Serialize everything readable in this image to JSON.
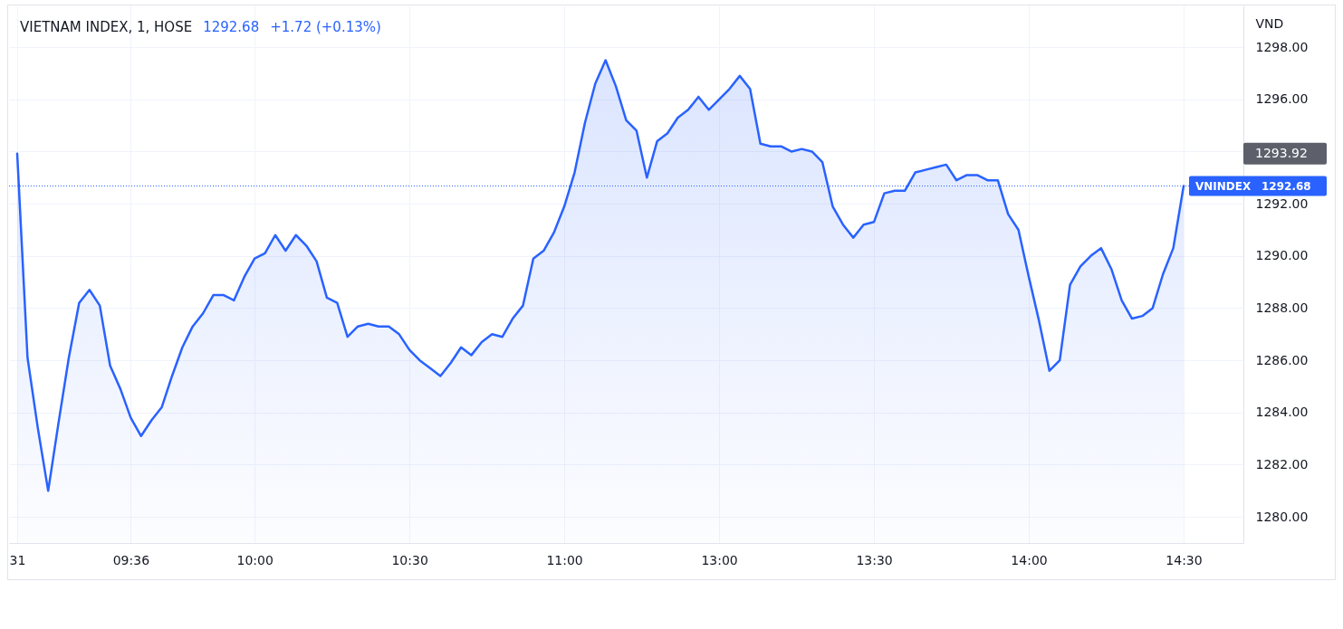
{
  "chart_data": {
    "type": "area",
    "title": "VIETNAM INDEX, 1, HOSE",
    "ylabel": "VND",
    "annotations": [
      "1292.68",
      "+1.72 (+0.13%)",
      "1293.92"
    ],
    "categories": [
      "31",
      null,
      null,
      null,
      null,
      null,
      null,
      null,
      null,
      null,
      null,
      "09:36",
      null,
      null,
      null,
      null,
      null,
      null,
      null,
      null,
      null,
      null,
      null,
      "10:00",
      null,
      null,
      null,
      null,
      null,
      null,
      null,
      null,
      null,
      null,
      null,
      null,
      null,
      null,
      "10:30",
      null,
      null,
      null,
      null,
      null,
      null,
      null,
      null,
      null,
      null,
      null,
      null,
      null,
      null,
      "11:00",
      null,
      null,
      null,
      null,
      null,
      null,
      null,
      null,
      null,
      null,
      null,
      null,
      null,
      null,
      "13:00",
      null,
      null,
      null,
      null,
      null,
      null,
      null,
      null,
      null,
      null,
      null,
      null,
      null,
      null,
      "13:30",
      null,
      null,
      null,
      null,
      null,
      null,
      null,
      null,
      null,
      null,
      null,
      null,
      null,
      null,
      "14:00",
      null,
      null,
      null,
      null,
      null,
      null,
      null,
      null,
      null,
      null,
      null,
      null,
      null,
      null,
      "14:30"
    ],
    "series": [
      {
        "color": "#2962ff",
        "values": [
          1293.92,
          1286.1,
          1283.4,
          1281.0,
          1283.6,
          1286.1,
          1288.2,
          1288.7,
          1288.1,
          1285.8,
          1284.9,
          1283.8,
          1283.1,
          1283.7,
          1284.2,
          1285.4,
          1286.5,
          1287.3,
          1287.8,
          1288.5,
          1288.5,
          1288.3,
          1289.2,
          1289.9,
          1290.1,
          1290.8,
          1290.2,
          1290.8,
          1290.4,
          1289.8,
          1288.4,
          1288.2,
          1286.9,
          1287.3,
          1287.4,
          1287.3,
          1287.3,
          1287.0,
          1286.4,
          1286.0,
          1285.7,
          1285.4,
          1285.9,
          1286.5,
          1286.2,
          1286.7,
          1287.0,
          1286.9,
          1287.6,
          1288.1,
          1289.9,
          1290.2,
          1290.9,
          1291.9,
          1293.2,
          1295.1,
          1296.6,
          1297.5,
          1296.5,
          1295.2,
          1294.8,
          1293.0,
          1294.4,
          1294.7,
          1295.3,
          1295.6,
          1296.1,
          1295.6,
          1296.0,
          1296.4,
          1296.9,
          1296.4,
          1294.3,
          1294.2,
          1294.2,
          1294.0,
          1294.1,
          1294.0,
          1293.6,
          1291.9,
          1291.2,
          1290.7,
          1291.2,
          1291.3,
          1292.4,
          1292.5,
          1292.5,
          1293.2,
          1293.3,
          1293.4,
          1293.5,
          1292.9,
          1293.1,
          1293.1,
          1292.9,
          1292.9,
          1291.6,
          1291.0,
          1289.2,
          1287.5,
          1285.6,
          1286.0,
          1288.9,
          1289.6,
          1290.0,
          1290.3,
          1289.5,
          1288.3,
          1287.6,
          1287.7,
          1288.0,
          1289.3,
          1290.3,
          1292.68
        ]
      }
    ],
    "ylim": [
      1279,
      1299.6
    ],
    "yticks": [
      {
        "value": 1280,
        "label": "1280.00"
      },
      {
        "value": 1282,
        "label": "1282.00"
      },
      {
        "value": 1284,
        "label": "1284.00"
      },
      {
        "value": 1286,
        "label": "1286.00"
      },
      {
        "value": 1288,
        "label": "1288.00"
      },
      {
        "value": 1290,
        "label": "1290.00"
      },
      {
        "value": 1292,
        "label": "1292.00"
      },
      {
        "value": 1294,
        "label": null
      },
      {
        "value": 1296,
        "label": "1296.00"
      },
      {
        "value": 1298,
        "label": "1298.00"
      }
    ],
    "grid": true,
    "ref_lines": [
      {
        "axis": "y",
        "value": 1292.68,
        "label": "VNINDEX",
        "color": "#2962ff",
        "line_style": "dotted"
      }
    ]
  }
}
